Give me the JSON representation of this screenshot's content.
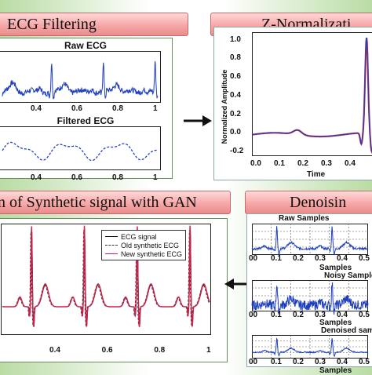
{
  "headers": {
    "ecg_filtering": "ECG Filtering",
    "z_normalization": "Z-Normalizati",
    "gan": "n of Synthetic signal with GAN",
    "denoising": "Denoisin"
  },
  "ecg_filtering": {
    "raw_title": "Raw ECG",
    "filtered_title": "Filtered ECG",
    "raw_ticks": [
      "0.4",
      "0.6",
      "0.8",
      "1"
    ],
    "filtered_ticks": [
      "0.4",
      "0.6",
      "0.8",
      "1"
    ]
  },
  "z_normalization": {
    "ylabel": "Normalized Amplitude",
    "xlabel": "Time",
    "yticks": [
      "1.0",
      "0.8",
      "0.6",
      "0.4",
      "0.2",
      "0.0",
      "-0.2"
    ],
    "xticks": [
      "0.0",
      "0.1",
      "0.2",
      "0.3",
      "0.4"
    ],
    "colors": {
      "line": "#1f3fbf",
      "highlight": "#d03030"
    }
  },
  "gan": {
    "legend": [
      "ECG signal",
      "Old synthetic ECG",
      "New synthetic ECG"
    ],
    "xticks": [
      "0.4",
      "0.6",
      "0.8",
      "1"
    ],
    "colors": {
      "ecg": "#111111",
      "old": "#333333",
      "new": "#d0204a"
    }
  },
  "denoising": {
    "raw_title": "Raw Samples",
    "noisy_title": "Noisy Sample",
    "denoised_title": "Denoised sam",
    "samples_label_1": "Samples",
    "samples_label_2": "Samples",
    "samples_label_3": "Samples",
    "xticks_1": [
      "00",
      "0.1",
      "0.2",
      "0.3",
      "0.4",
      "0.5"
    ],
    "xticks_2": [
      "00",
      "0.1",
      "0.2",
      "0.3",
      "0.4",
      "0.5"
    ],
    "xticks_3": [
      "00",
      "0.1",
      "0.2",
      "0.3",
      "0.4",
      "0.5"
    ],
    "colors": {
      "line": "#1f3fbf"
    }
  },
  "arrows": {
    "color": "#111111"
  }
}
